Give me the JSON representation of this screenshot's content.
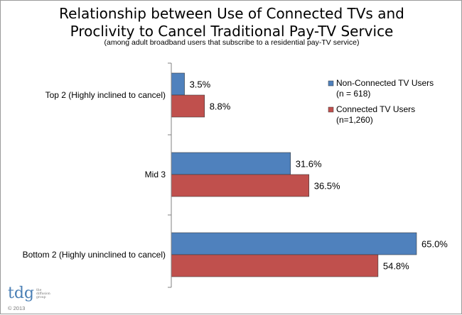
{
  "chart_data": {
    "type": "bar",
    "orientation": "horizontal",
    "title": "Relationship between Use of Connected TVs and Proclivity to Cancel Traditional Pay-TV Service",
    "title_lines": [
      "Relationship between Use of Connected TVs and",
      "Proclivity to Cancel Traditional Pay-TV Service"
    ],
    "subtitle": "(among adult broadband users that subscribe to a residential pay-TV service)",
    "categories": [
      "Top 2 (Highly inclined to cancel)",
      "Mid 3",
      "Bottom 2 (Highly uninclined to cancel)"
    ],
    "series": [
      {
        "name": "Non-Connected TV Users",
        "name_line2": "(n = 618)",
        "values": [
          3.5,
          31.6,
          65.0
        ],
        "labels": [
          "3.5%",
          "31.6%",
          "65.0%"
        ],
        "color": "#4f81bd"
      },
      {
        "name": "Connected TV Users",
        "name_line2": "(n=1,260)",
        "values": [
          8.8,
          36.5,
          54.8
        ],
        "labels": [
          "8.8%",
          "36.5%",
          "54.8%"
        ],
        "color": "#c0504d"
      }
    ],
    "xlim": [
      0,
      70
    ],
    "grid": false,
    "legend": "top-right",
    "unit": "%"
  },
  "branding": {
    "logo_text": "tdg",
    "logo_tagline": "the diffusion group",
    "copyright": "© 2013"
  }
}
